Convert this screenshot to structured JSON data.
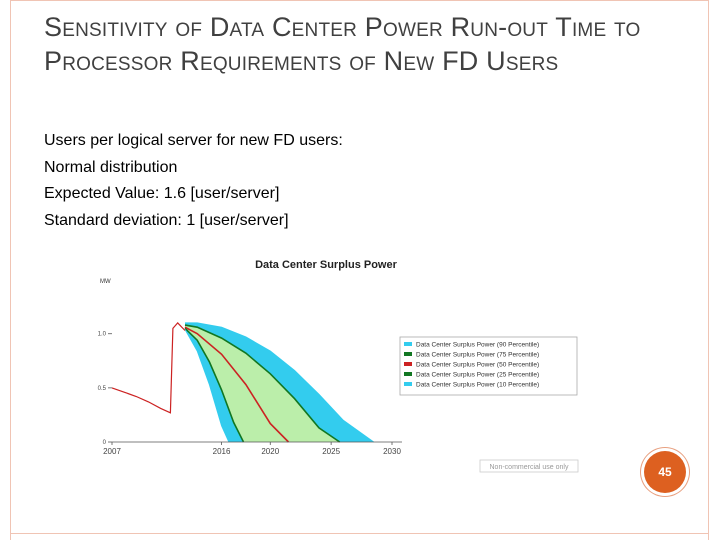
{
  "slide": {
    "title": "Sensitivity of Data Center Power Run-out Time to Processor Requirements of New FD Users",
    "bullets": [
      "Users per logical server for new FD users:",
      "Normal distribution",
      "Expected Value: 1.6 [user/server]",
      "Standard deviation: 1 [user/server]"
    ],
    "page_number": "45"
  },
  "chart_data": {
    "type": "area",
    "title": "Data Center Surplus Power",
    "ylabel": "MW",
    "xlim": [
      2007,
      2030
    ],
    "ylim": [
      0,
      1.45
    ],
    "y_ticks": [
      "1.0",
      "0.5",
      "0"
    ],
    "x_ticks": [
      "2007",
      "2016",
      "2020",
      "2025",
      "2030"
    ],
    "x_tick_values": [
      2007,
      2016,
      2020,
      2025,
      2030
    ],
    "y_tick_values": [
      1.0,
      0.5,
      0
    ],
    "colors": {
      "band_outer": "#33ccee",
      "band_inner": "#bbeeaa",
      "line_90": "#33ccee",
      "line_75": "#117722",
      "line_50": "#cc2222",
      "line_25": "#117722",
      "line_10": "#33ccee",
      "history": "#cc2222"
    },
    "history": {
      "x": [
        2007,
        2008,
        2009,
        2010,
        2011,
        2011.8,
        2012.0,
        2012.4,
        2013.0
      ],
      "y": [
        0.5,
        0.46,
        0.42,
        0.37,
        0.31,
        0.27,
        1.05,
        1.1,
        1.03
      ]
    },
    "series": [
      {
        "name": "Data Center Surplus Power (90 Percentile)",
        "x": [
          2013,
          2014,
          2016,
          2018,
          2020,
          2022,
          2024,
          2026,
          2028.5
        ],
        "y": [
          1.1,
          1.1,
          1.06,
          0.97,
          0.84,
          0.66,
          0.44,
          0.2,
          0
        ]
      },
      {
        "name": "Data Center Surplus Power (75 Percentile)",
        "x": [
          2013,
          2014,
          2016,
          2018,
          2020,
          2022,
          2024,
          2025.7
        ],
        "y": [
          1.08,
          1.06,
          0.96,
          0.82,
          0.63,
          0.4,
          0.13,
          0
        ]
      },
      {
        "name": "Data Center Surplus Power (50 Percentile)",
        "x": [
          2013,
          2014,
          2016,
          2018,
          2020,
          2021.5
        ],
        "y": [
          1.06,
          1.0,
          0.81,
          0.53,
          0.17,
          0
        ]
      },
      {
        "name": "Data Center Surplus Power (25 Percentile)",
        "x": [
          2013,
          2014,
          2015,
          2016,
          2017,
          2017.8
        ],
        "y": [
          1.05,
          0.94,
          0.74,
          0.48,
          0.18,
          0
        ]
      },
      {
        "name": "Data Center Surplus Power (10 Percentile)",
        "x": [
          2013,
          2014,
          2015,
          2016,
          2016.6
        ],
        "y": [
          1.04,
          0.84,
          0.53,
          0.15,
          0
        ]
      }
    ],
    "legend_position": "right",
    "watermark": "Non-commercial use only"
  }
}
